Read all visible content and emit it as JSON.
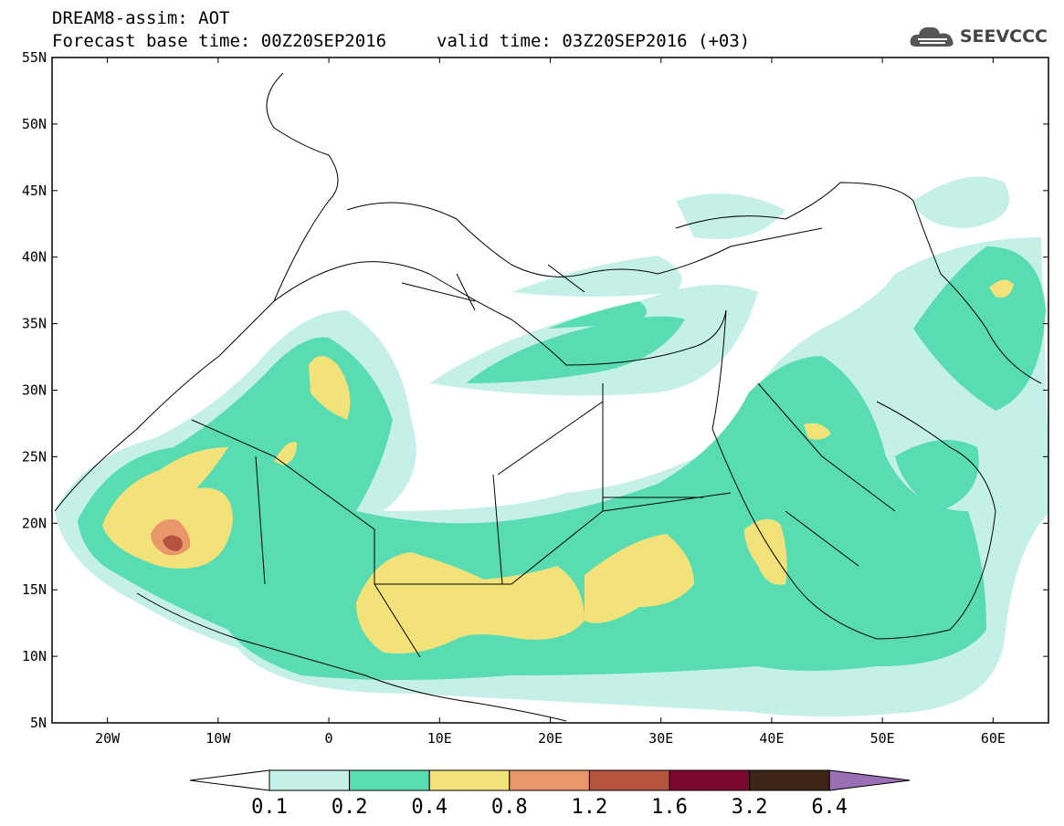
{
  "header": {
    "title": "DREAM8-assim: AOT",
    "base_time": "Forecast base time: 00Z20SEP2016",
    "valid_time": "valid time: 03Z20SEP2016 (+03)"
  },
  "logo": {
    "text": "SEEVCCC",
    "icon": "cloud-icon"
  },
  "map": {
    "lat_labels": [
      "55N",
      "50N",
      "45N",
      "40N",
      "35N",
      "30N",
      "25N",
      "20N",
      "15N",
      "10N",
      "5N"
    ],
    "lon_labels": [
      "20W",
      "10W",
      "0",
      "10E",
      "20E",
      "30E",
      "40E",
      "50E",
      "60E"
    ],
    "lat_range": [
      5,
      55
    ],
    "lon_range": [
      -25,
      65
    ]
  },
  "colorbar": {
    "labels": [
      "0.1",
      "0.2",
      "0.4",
      "0.8",
      "1.2",
      "1.6",
      "3.2",
      "6.4"
    ],
    "colors": [
      "#c4f0e8",
      "#5adcb3",
      "#f3e27a",
      "#e8966a",
      "#b5533f",
      "#7b0a2e",
      "#3c2516"
    ],
    "under_color": "#ffffff",
    "over_color": "#9a6fb5"
  }
}
